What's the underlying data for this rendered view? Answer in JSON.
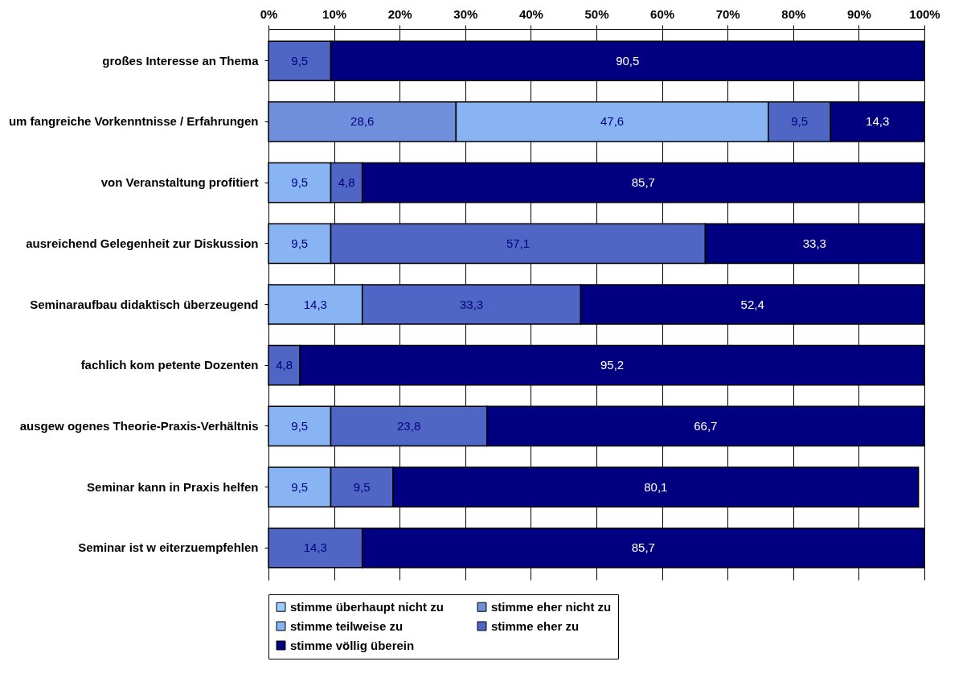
{
  "chart_data": {
    "type": "bar",
    "orientation": "horizontal",
    "stacked": true,
    "categories": [
      "großes Interesse an Thema",
      "um fangreiche Vorkenntnisse / Erfahrungen",
      "von Veranstaltung profitiert",
      "ausreichend Gelegenheit zur Diskussion",
      "Seminaraufbau didaktisch überzeugend",
      "fachlich kom petente Dozenten",
      "ausgew ogenes Theorie-Praxis-Verhältnis",
      "Seminar kann in Praxis helfen",
      "Seminar ist w eiterzuempfehlen"
    ],
    "series": [
      {
        "name": "stimme überhaupt nicht zu",
        "color": "#99ccff",
        "values": [
          null,
          null,
          null,
          null,
          null,
          null,
          null,
          null,
          null
        ],
        "value_labels": [
          null,
          null,
          null,
          null,
          null,
          null,
          null,
          null,
          null
        ]
      },
      {
        "name": "stimme eher nicht zu",
        "color": "#6f8fdc",
        "values": [
          null,
          28.6,
          null,
          null,
          null,
          null,
          null,
          null,
          null
        ],
        "value_labels": [
          null,
          "28,6",
          null,
          null,
          null,
          null,
          null,
          null,
          null
        ]
      },
      {
        "name": "stimme teilweise zu",
        "color": "#88b4f4",
        "values": [
          null,
          47.6,
          9.5,
          9.5,
          14.3,
          null,
          9.5,
          9.5,
          null
        ],
        "value_labels": [
          null,
          "47,6",
          "9,5",
          "9,5",
          "14,3",
          null,
          "9,5",
          "9,5",
          null
        ]
      },
      {
        "name": "stimme eher zu",
        "color": "#4f66c4",
        "values": [
          9.5,
          9.5,
          4.8,
          57.1,
          33.3,
          4.8,
          23.8,
          9.5,
          14.3
        ],
        "value_labels": [
          "9,5",
          "9,5",
          "4,8",
          "57,1",
          "33,3",
          "4,8",
          "23,8",
          "9,5",
          "14,3"
        ]
      },
      {
        "name": "stimme völlig überein",
        "color": "#000080",
        "values": [
          90.5,
          14.3,
          85.7,
          33.3,
          52.4,
          95.2,
          66.7,
          80.1,
          85.7
        ],
        "value_labels": [
          "90,5",
          "14,3",
          "85,7",
          "33,3",
          "52,4",
          "95,2",
          "66,7",
          "80,1",
          "85,7"
        ]
      }
    ],
    "xlim": [
      0,
      100
    ],
    "xticks": [
      {
        "value": 0,
        "label": "0%"
      },
      {
        "value": 10,
        "label": "10%"
      },
      {
        "value": 20,
        "label": "20%"
      },
      {
        "value": 30,
        "label": "30%"
      },
      {
        "value": 40,
        "label": "40%"
      },
      {
        "value": 50,
        "label": "50%"
      },
      {
        "value": 60,
        "label": "60%"
      },
      {
        "value": 70,
        "label": "70%"
      },
      {
        "value": 80,
        "label": "80%"
      },
      {
        "value": 90,
        "label": "90%"
      },
      {
        "value": 100,
        "label": "100%"
      }
    ],
    "grid": "x",
    "legend": "bottom"
  }
}
